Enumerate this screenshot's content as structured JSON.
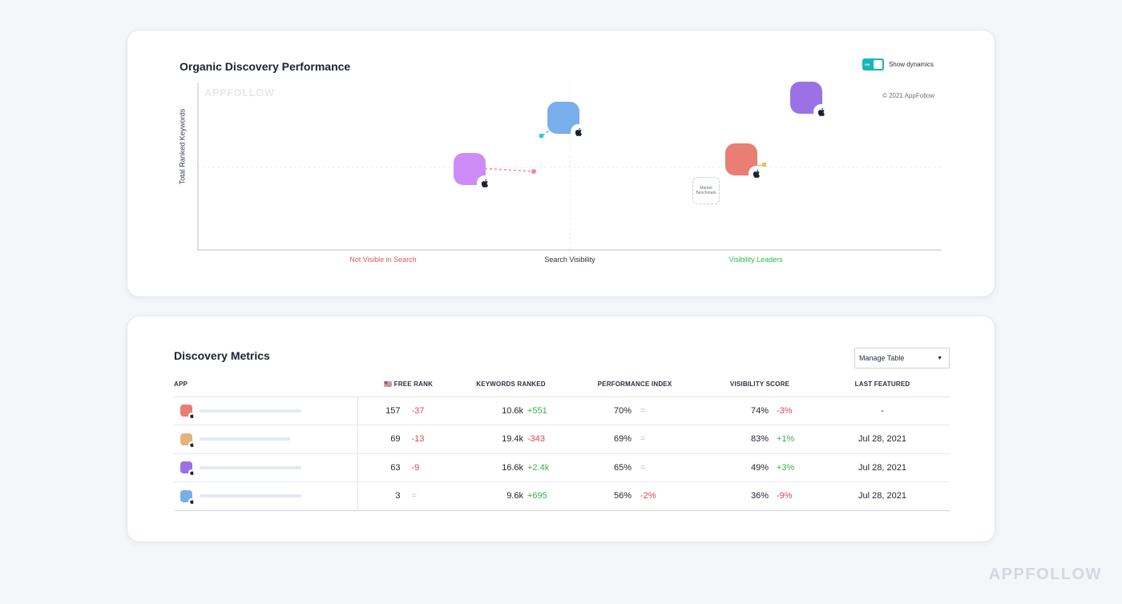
{
  "chart": {
    "title": "Organic Discovery Performance",
    "toggle_state": "ON",
    "toggle_label": "Show dynamics",
    "watermark": "APPFOLLOW",
    "copyright": "© 2021 AppFollow",
    "y_axis_label": "Total Ranked Keywords",
    "x_categories": [
      "Not Visible in Search",
      "Search Visibility",
      "Visibility Leaders"
    ],
    "benchmark_label": "Market Benchmark",
    "apps": [
      {
        "color": "#cf8cf8",
        "trail_color": "#f08a8a"
      },
      {
        "color": "#78aeea",
        "trail_color": "#30c9c6"
      },
      {
        "color": "#e87e74",
        "trail_color": "#f0c060"
      },
      {
        "color": "#9b72e6",
        "trail_color": ""
      }
    ]
  },
  "table": {
    "title": "Discovery Metrics",
    "manage_label": "Manage Table",
    "columns": {
      "app": "APP",
      "free_rank": "FREE RANK",
      "free_rank_flag": "🇺🇸",
      "keywords": "KEYWORDS RANKED",
      "performance": "PERFORMANCE INDEX",
      "visibility": "VISIBILITY SCORE",
      "featured": "LAST FEATURED"
    },
    "rows": [
      {
        "icon_color": "#e87e74",
        "bar_fill": 1.0,
        "rank": "157",
        "rank_delta": "-37",
        "rank_dir": "neg",
        "keywords": "10.6k",
        "keywords_delta": "+551",
        "keywords_dir": "pos",
        "perf": "70%",
        "perf_delta": "=",
        "perf_dir": "neu",
        "vis": "74%",
        "vis_delta": "-3%",
        "vis_dir": "neg",
        "featured": "-"
      },
      {
        "icon_color": "#e8b07a",
        "bar_fill": 0.89,
        "rank": "69",
        "rank_delta": "-13",
        "rank_dir": "neg",
        "keywords": "19.4k",
        "keywords_delta": "-343",
        "keywords_dir": "neg",
        "perf": "69%",
        "perf_delta": "=",
        "perf_dir": "neu",
        "vis": "83%",
        "vis_delta": "+1%",
        "vis_dir": "pos",
        "featured": "Jul 28, 2021"
      },
      {
        "icon_color": "#9b72e6",
        "bar_fill": 1.0,
        "rank": "63",
        "rank_delta": "-9",
        "rank_dir": "neg",
        "keywords": "16.6k",
        "keywords_delta": "+2.4k",
        "keywords_dir": "pos",
        "perf": "65%",
        "perf_delta": "=",
        "perf_dir": "neu",
        "vis": "49%",
        "vis_delta": "+3%",
        "vis_dir": "pos",
        "featured": "Jul 28, 2021"
      },
      {
        "icon_color": "#78aeea",
        "bar_fill": 1.0,
        "rank": "3",
        "rank_delta": "=",
        "rank_dir": "neu",
        "keywords": "9.6k",
        "keywords_delta": "+695",
        "keywords_dir": "pos",
        "perf": "56%",
        "perf_delta": "-2%",
        "perf_dir": "neg",
        "vis": "36%",
        "vis_delta": "-9%",
        "vis_dir": "neg",
        "featured": "Jul 28, 2021"
      }
    ]
  },
  "brand_logo": "APPFOLLOW"
}
